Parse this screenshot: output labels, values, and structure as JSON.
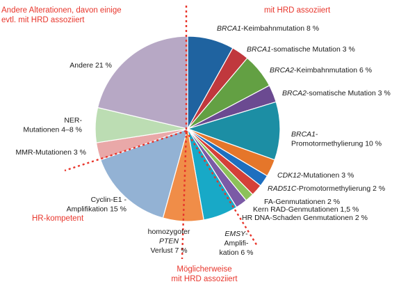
{
  "chart_data": {
    "type": "pie",
    "start_angle_deg": 0,
    "direction": "clockwise",
    "unit": "%",
    "slices": [
      {
        "lines": [
          [
            {
              "t": "BRCA1",
              "i": true
            },
            {
              "t": "-Keimbahnmutation 8 %"
            }
          ]
        ],
        "value": 8,
        "color": "#1f63a0"
      },
      {
        "lines": [
          [
            {
              "t": "BRCA1",
              "i": true
            },
            {
              "t": "-somatische Mutation 3 %"
            }
          ]
        ],
        "value": 3,
        "color": "#c0383d"
      },
      {
        "lines": [
          [
            {
              "t": "BRCA2",
              "i": true
            },
            {
              "t": "-Keimbahnmutation 6 %"
            }
          ]
        ],
        "value": 6,
        "color": "#63a043"
      },
      {
        "lines": [
          [
            {
              "t": "BRCA2",
              "i": true
            },
            {
              "t": "-somatische Mutation 3 %"
            }
          ]
        ],
        "value": 3,
        "color": "#6b4a91"
      },
      {
        "lines": [
          [
            {
              "t": "BRCA1",
              "i": true
            },
            {
              "t": "-"
            }
          ],
          [
            {
              "t": "Promotormethylierung 10 %"
            }
          ]
        ],
        "value": 10,
        "color": "#1c8ea4"
      },
      {
        "lines": [
          [
            {
              "t": "CDK12",
              "i": true
            },
            {
              "t": "-Mutationen 3 %"
            }
          ]
        ],
        "value": 3,
        "color": "#e5762a"
      },
      {
        "lines": [
          [
            {
              "t": "RAD51C",
              "i": true
            },
            {
              "t": "-Promotormethylierung 2 %"
            }
          ]
        ],
        "value": 2,
        "color": "#1e6fbf"
      },
      {
        "lines": [
          [
            {
              "t": "FA-Genmutationen 2 %"
            }
          ]
        ],
        "value": 2,
        "color": "#d54038"
      },
      {
        "lines": [
          [
            {
              "t": "Kern RAD-Genmutationen 1,5 %"
            }
          ]
        ],
        "value": 1.5,
        "color": "#8cc15a"
      },
      {
        "lines": [
          [
            {
              "t": "HR DNA-Schaden Genmutationen 2 %"
            }
          ]
        ],
        "value": 2,
        "color": "#7b5aa6"
      },
      {
        "lines": [
          [
            {
              "t": "EMSY",
              "i": true
            },
            {
              "t": "-"
            }
          ],
          [
            {
              "t": "Amplifi-"
            }
          ],
          [
            {
              "t": "kation 6 %"
            }
          ]
        ],
        "value": 6,
        "color": "#18a9c7"
      },
      {
        "lines": [
          [
            {
              "t": "homozygoter"
            }
          ],
          [
            {
              "t": "PTEN",
              "i": true
            }
          ],
          [
            {
              "t": "Verlust 7 %"
            }
          ]
        ],
        "value": 7,
        "color": "#f08d48"
      },
      {
        "lines": [
          [
            {
              "t": "Cyclin-E1 -"
            }
          ],
          [
            {
              "t": "Amplifikation 15 %"
            }
          ]
        ],
        "value": 15,
        "color": "#93b2d4"
      },
      {
        "lines": [
          [
            {
              "t": "MMR-Mutationen 3 %"
            }
          ]
        ],
        "value": 3,
        "color": "#e9a8a8"
      },
      {
        "lines": [
          [
            {
              "t": "NER-"
            }
          ],
          [
            {
              "t": "Mutationen 4–8 %"
            }
          ]
        ],
        "value": 6,
        "color": "#bcddb3"
      },
      {
        "lines": [
          [
            {
              "t": "Andere 21 %"
            }
          ]
        ],
        "value": 21,
        "color": "#b7a8c5"
      }
    ],
    "category_labels": [
      {
        "lines": [
          "Andere Alterationen, davon einige",
          "evtl. mit HRD assoziiert"
        ],
        "color": "#e8352b"
      },
      {
        "lines": [
          "mit HRD assoziiert"
        ],
        "color": "#e8352b"
      },
      {
        "lines": [
          "HR-kompetent"
        ],
        "color": "#e8352b"
      },
      {
        "lines": [
          "Möglicherweise",
          "mit HRD assoziiert"
        ],
        "color": "#e8352b"
      }
    ],
    "divider_color": "#e8352b"
  }
}
